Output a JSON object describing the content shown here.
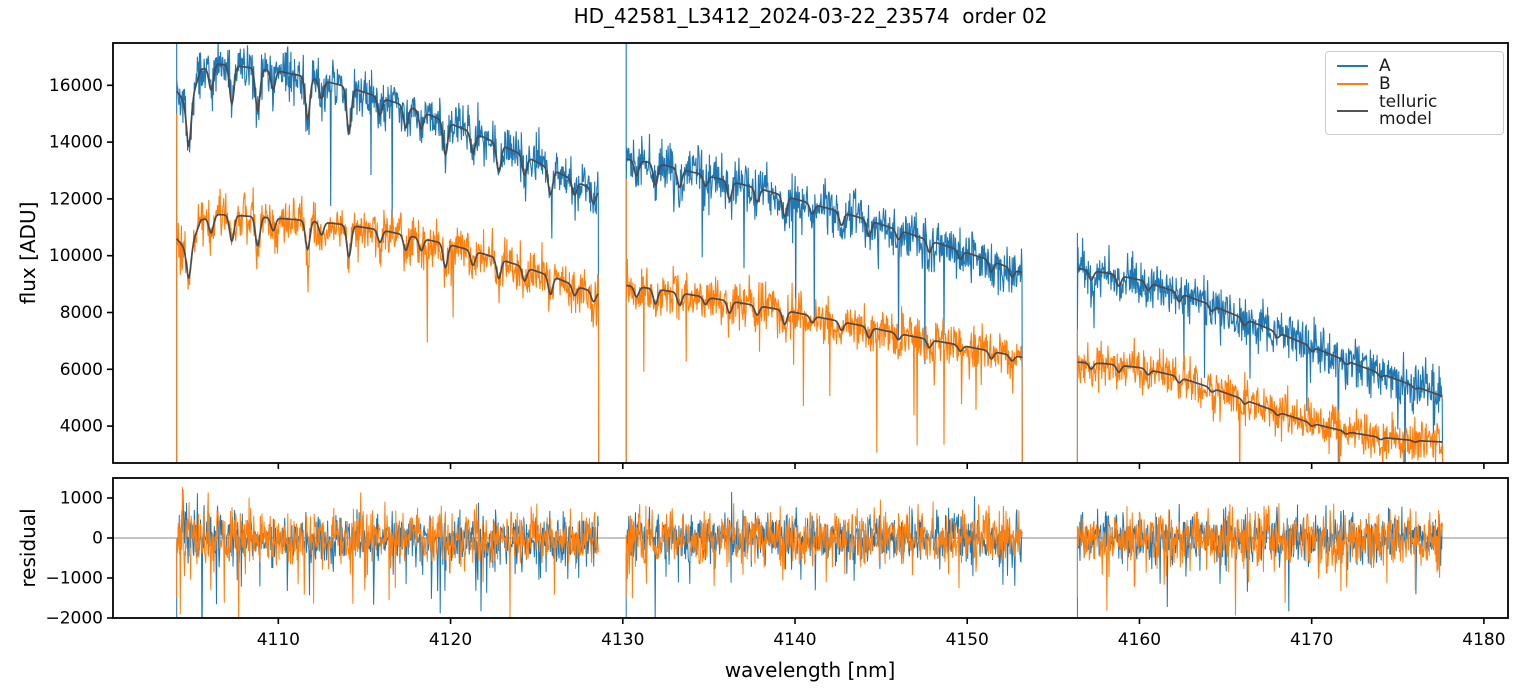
{
  "title": "HD_42581_L3412_2024-03-22_23574  order 02",
  "legend": {
    "entries": [
      {
        "label": "A",
        "color": "#1f77b4"
      },
      {
        "label": "B",
        "color": "#ff7f0e"
      },
      {
        "label": "telluric model",
        "color": "#555555"
      }
    ]
  },
  "chart_data": [
    {
      "type": "line",
      "panel": "flux",
      "title": "HD_42581_L3412_2024-03-22_23574  order 02",
      "ylabel": "flux [ADU]",
      "xlim": [
        4100.4,
        4181.4
      ],
      "ylim": [
        2700,
        17490
      ],
      "yticks": [
        4000,
        6000,
        8000,
        10000,
        12000,
        14000,
        16000
      ],
      "grid": false,
      "legend_position": "upper right",
      "segments": [
        [
          4104.1,
          4128.6
        ],
        [
          4130.2,
          4153.2
        ],
        [
          4156.4,
          4177.6
        ]
      ],
      "series": [
        {
          "name": "A",
          "color": "#1f77b4",
          "noise_sd": 430,
          "spike_prob": 0.016,
          "edge_spike_top": [
            17490,
            17490,
            10800
          ],
          "envelope": [
            [
              4104.1,
              15800
            ],
            [
              4104.8,
              15200
            ],
            [
              4105.5,
              16550
            ],
            [
              4106.5,
              16750
            ],
            [
              4108,
              16650
            ],
            [
              4110,
              16500
            ],
            [
              4112,
              16250
            ],
            [
              4114,
              15950
            ],
            [
              4116,
              15550
            ],
            [
              4118,
              15150
            ],
            [
              4120,
              14650
            ],
            [
              4122,
              14150
            ],
            [
              4124,
              13600
            ],
            [
              4126,
              13000
            ],
            [
              4127.5,
              12550
            ],
            [
              4128.6,
              12250
            ],
            [
              4130.2,
              13400
            ],
            [
              4132,
              13250
            ],
            [
              4134,
              12950
            ],
            [
              4136,
              12650
            ],
            [
              4138,
              12350
            ],
            [
              4140,
              12000
            ],
            [
              4142,
              11650
            ],
            [
              4144,
              11300
            ],
            [
              4146,
              10900
            ],
            [
              4148,
              10500
            ],
            [
              4150,
              10100
            ],
            [
              4151.5,
              9800
            ],
            [
              4153.2,
              9400
            ],
            [
              4156.4,
              9550
            ],
            [
              4158,
              9400
            ],
            [
              4160,
              9150
            ],
            [
              4162,
              8750
            ],
            [
              4164,
              8300
            ],
            [
              4166,
              7800
            ],
            [
              4168,
              7300
            ],
            [
              4170,
              6800
            ],
            [
              4172,
              6300
            ],
            [
              4174,
              5850
            ],
            [
              4176,
              5400
            ],
            [
              4177.6,
              5050
            ]
          ]
        },
        {
          "name": "B",
          "color": "#ff7f0e",
          "noise_sd": 390,
          "spike_prob": 0.014,
          "edge_spike_top": [
            15000,
            12700,
            7400
          ],
          "envelope": [
            [
              4104.1,
              10600
            ],
            [
              4104.8,
              10100
            ],
            [
              4105.5,
              11250
            ],
            [
              4106.5,
              11450
            ],
            [
              4108,
              11400
            ],
            [
              4110,
              11320
            ],
            [
              4112,
              11220
            ],
            [
              4114,
              11080
            ],
            [
              4116,
              10900
            ],
            [
              4118,
              10650
            ],
            [
              4120,
              10380
            ],
            [
              4122,
              10050
            ],
            [
              4124,
              9650
            ],
            [
              4126,
              9250
            ],
            [
              4127.5,
              8880
            ],
            [
              4128.6,
              8680
            ],
            [
              4130.2,
              8950
            ],
            [
              4132,
              8820
            ],
            [
              4134,
              8620
            ],
            [
              4136,
              8420
            ],
            [
              4138,
              8220
            ],
            [
              4140,
              8000
            ],
            [
              4142,
              7760
            ],
            [
              4144,
              7520
            ],
            [
              4146,
              7260
            ],
            [
              4148,
              7020
            ],
            [
              4150,
              6800
            ],
            [
              4151.5,
              6620
            ],
            [
              4153.2,
              6420
            ],
            [
              4156.4,
              6250
            ],
            [
              4158,
              6200
            ],
            [
              4160,
              6060
            ],
            [
              4162,
              5780
            ],
            [
              4164,
              5380
            ],
            [
              4166,
              4950
            ],
            [
              4168,
              4500
            ],
            [
              4170,
              4100
            ],
            [
              4172,
              3800
            ],
            [
              4174,
              3600
            ],
            [
              4176,
              3490
            ],
            [
              4177.6,
              3440
            ]
          ]
        },
        {
          "name": "telluric model",
          "color": "#4a4a4a",
          "role": "model"
        }
      ],
      "telluric_dips": [
        [
          4104.8,
          0.09
        ],
        [
          4106.1,
          0.05
        ],
        [
          4107.3,
          0.08
        ],
        [
          4108.8,
          0.09
        ],
        [
          4109.7,
          0.04
        ],
        [
          4111.7,
          0.09
        ],
        [
          4112.5,
          0.04
        ],
        [
          4114.1,
          0.1
        ],
        [
          4115.9,
          0.04
        ],
        [
          4117.4,
          0.05
        ],
        [
          4118.3,
          0.04
        ],
        [
          4119.7,
          0.08
        ],
        [
          4121.3,
          0.05
        ],
        [
          4122.8,
          0.07
        ],
        [
          4124.3,
          0.05
        ],
        [
          4125.8,
          0.07
        ],
        [
          4127.2,
          0.04
        ],
        [
          4128.3,
          0.04
        ],
        [
          4130.8,
          0.04
        ],
        [
          4131.9,
          0.06
        ],
        [
          4133.3,
          0.05
        ],
        [
          4134.8,
          0.03
        ],
        [
          4136.2,
          0.05
        ],
        [
          4137.8,
          0.04
        ],
        [
          4139.4,
          0.06
        ],
        [
          4141.0,
          0.03
        ],
        [
          4142.7,
          0.04
        ],
        [
          4144.3,
          0.05
        ],
        [
          4146.0,
          0.03
        ],
        [
          4147.8,
          0.04
        ],
        [
          4149.6,
          0.03
        ],
        [
          4151.4,
          0.04
        ],
        [
          4152.6,
          0.03
        ],
        [
          4157.2,
          0.035
        ],
        [
          4158.8,
          0.04
        ],
        [
          4160.5,
          0.03
        ],
        [
          4162.3,
          0.035
        ],
        [
          4164.2,
          0.025
        ],
        [
          4166.1,
          0.03
        ],
        [
          4168.0,
          0.025
        ],
        [
          4170.0,
          0.025
        ],
        [
          4172.0,
          0.02
        ],
        [
          4174.0,
          0.02
        ],
        [
          4176.0,
          0.015
        ]
      ]
    },
    {
      "type": "line",
      "panel": "residual",
      "ylabel": "residual",
      "xlabel": "wavelength [nm]",
      "xlim": [
        4100.4,
        4181.4
      ],
      "ylim": [
        -2000,
        1500
      ],
      "yticks": [
        -2000,
        -1000,
        0,
        1000
      ],
      "xticks": [
        4110,
        4120,
        4130,
        4140,
        4150,
        4160,
        4170,
        4180
      ],
      "zero_line": 0,
      "segments": [
        [
          4104.1,
          4128.6
        ],
        [
          4130.2,
          4153.2
        ],
        [
          4156.4,
          4177.6
        ]
      ],
      "series": [
        {
          "name": "A residual",
          "color": "#1f77b4",
          "noise_sd": 300,
          "down_spike_prob": 0.05,
          "up_spike_prob": 0.012
        },
        {
          "name": "B residual",
          "color": "#ff7f0e",
          "noise_sd": 330,
          "down_spike_prob": 0.055,
          "up_spike_prob": 0.014
        }
      ]
    }
  ]
}
